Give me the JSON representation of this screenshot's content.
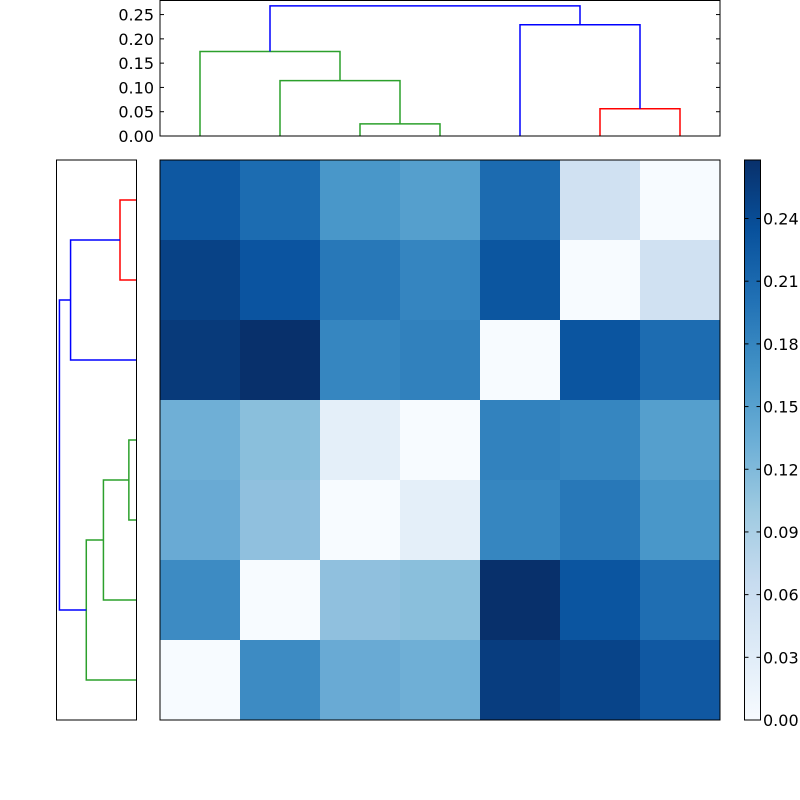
{
  "chart_data": [
    {
      "type": "dendrogram",
      "position": "top",
      "orientation": "vertical",
      "ylabel": "",
      "ylim": [
        0,
        0.28
      ],
      "yticks": [
        "0.00",
        "0.05",
        "0.10",
        "0.15",
        "0.20",
        "0.25"
      ],
      "leaf_order": [
        0,
        1,
        2,
        3,
        4,
        5,
        6
      ],
      "links": [
        {
          "left": 2,
          "right": 3,
          "height": 0.025,
          "color": "#2ca02c"
        },
        {
          "left": 1,
          "right": "2+3",
          "height": 0.114,
          "color": "#2ca02c"
        },
        {
          "left": 0,
          "right": "1+2+3",
          "height": 0.174,
          "color": "#2ca02c"
        },
        {
          "left": 5,
          "right": 6,
          "height": 0.056,
          "color": "#ff0000"
        },
        {
          "left": 4,
          "right": "5+6",
          "height": 0.229,
          "color": "#0000ff"
        },
        {
          "left": "0-3",
          "right": "4-6",
          "height": 0.268,
          "color": "#0000ff"
        }
      ]
    },
    {
      "type": "dendrogram",
      "position": "left",
      "orientation": "horizontal",
      "leaf_order_top_to_bottom": [
        0,
        1,
        2,
        3,
        4,
        5,
        6
      ],
      "links": [
        {
          "a": 0,
          "b": 1,
          "height": 0.056,
          "color": "#ff0000"
        },
        {
          "a": "0+1",
          "b": 2,
          "height": 0.229,
          "color": "#0000ff"
        },
        {
          "a": 3,
          "b": 4,
          "height": 0.025,
          "color": "#2ca02c"
        },
        {
          "a": "3+4",
          "b": 5,
          "height": 0.114,
          "color": "#2ca02c"
        },
        {
          "a": "3-5",
          "b": 6,
          "height": 0.174,
          "color": "#2ca02c"
        },
        {
          "a": "0-2",
          "b": "3-6",
          "height": 0.268,
          "color": "#0000ff"
        }
      ]
    },
    {
      "type": "heatmap",
      "colormap": "Blues",
      "vmin": 0.0,
      "vmax": 0.268,
      "rows": 7,
      "cols": 7,
      "values": [
        [
          0.222,
          0.2,
          0.15,
          0.14,
          0.202,
          0.056,
          0.0
        ],
        [
          0.24,
          0.225,
          0.185,
          0.17,
          0.229,
          0.0,
          0.056
        ],
        [
          0.255,
          0.268,
          0.168,
          0.174,
          0.0,
          0.225,
          0.2
        ],
        [
          0.122,
          0.105,
          0.025,
          0.0,
          0.174,
          0.168,
          0.14
        ],
        [
          0.128,
          0.1,
          0.0,
          0.025,
          0.168,
          0.185,
          0.15
        ],
        [
          0.16,
          0.0,
          0.1,
          0.105,
          0.268,
          0.225,
          0.195
        ],
        [
          0.0,
          0.16,
          0.128,
          0.122,
          0.255,
          0.24,
          0.222
        ]
      ],
      "cell_colors": [
        [
          "#0e58a2",
          "#1c6cb1",
          "#4997c9",
          "#559fcd",
          "#1c6bb0",
          "#d0e1f2",
          "#f7fbff"
        ],
        [
          "#084286",
          "#0b54a0",
          "#2878b8",
          "#3585c0",
          "#0c56a0",
          "#f7fbff",
          "#d0e1f2"
        ],
        [
          "#083a7a",
          "#08306b",
          "#3686c0",
          "#3181bd",
          "#f7fbff",
          "#0b55a0",
          "#1d6cb1"
        ],
        [
          "#6fafd6",
          "#8abfdc",
          "#e4eff9",
          "#f7fbff",
          "#3282be",
          "#3686c0",
          "#559fcd"
        ],
        [
          "#69aad4",
          "#90c0de",
          "#f7fbff",
          "#e4eff9",
          "#3686c0",
          "#2878b8",
          "#4997c9"
        ],
        [
          "#3d8bc3",
          "#f7fbff",
          "#90c0de",
          "#8abfdc",
          "#08306b",
          "#0b55a0",
          "#1f6eb2"
        ],
        [
          "#f7fbff",
          "#3d8bc3",
          "#69aad4",
          "#6fafd6",
          "#083d7f",
          "#084489",
          "#1058a2"
        ]
      ]
    },
    {
      "type": "colorbar",
      "colormap": "Blues",
      "range": [
        0.0,
        0.268
      ],
      "ticks": [
        "0.00",
        "0.03",
        "0.06",
        "0.09",
        "0.12",
        "0.15",
        "0.18",
        "0.21",
        "0.24"
      ]
    }
  ],
  "colors": {
    "cluster_green": "#2ca02c",
    "cluster_red": "#ff0000",
    "above_threshold_blue": "#0000ff",
    "axes_edge": "#000000"
  }
}
